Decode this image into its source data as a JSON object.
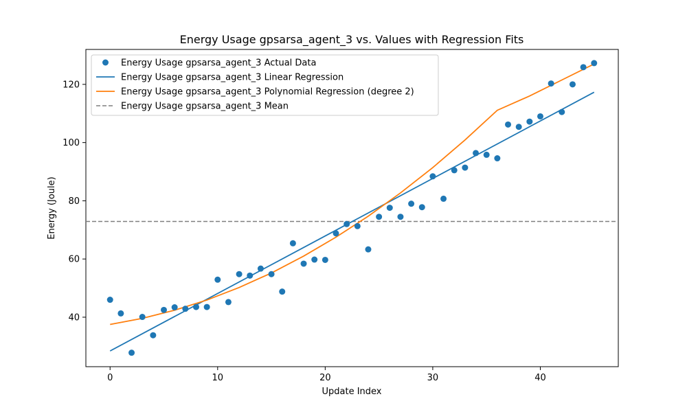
{
  "chart_data": {
    "type": "scatter",
    "title": "Energy Usage gpsarsa_agent_3 vs. Values with Regression Fits",
    "xlabel": "Update Index",
    "ylabel": "Energy (Joule)",
    "xlim": [
      -2.25,
      47.25
    ],
    "ylim": [
      23.0,
      132.0
    ],
    "xticks": [
      0,
      10,
      20,
      30,
      40
    ],
    "yticks": [
      40,
      60,
      80,
      100,
      120
    ],
    "grid": false,
    "legend_position": "top-left",
    "series": [
      {
        "name": "Energy Usage gpsarsa_agent_3 Actual Data",
        "kind": "scatter",
        "color": "#1f77b4",
        "x": [
          0,
          1,
          2,
          3,
          4,
          5,
          6,
          7,
          8,
          9,
          10,
          11,
          12,
          13,
          14,
          15,
          16,
          17,
          18,
          19,
          20,
          21,
          22,
          23,
          24,
          25,
          26,
          27,
          28,
          29,
          30,
          31,
          32,
          33,
          34,
          35,
          36,
          37,
          38,
          39,
          40,
          41,
          42,
          43,
          44,
          45
        ],
        "y": [
          46.0,
          41.3,
          27.8,
          40.1,
          33.8,
          42.5,
          43.4,
          42.9,
          43.5,
          43.5,
          52.9,
          45.2,
          54.8,
          54.3,
          56.7,
          54.8,
          48.8,
          65.4,
          58.4,
          59.8,
          59.7,
          68.8,
          72.0,
          71.3,
          63.3,
          74.5,
          77.6,
          74.5,
          79.0,
          77.8,
          88.4,
          80.7,
          90.5,
          91.4,
          96.4,
          95.8,
          94.6,
          106.2,
          105.4,
          107.2,
          109.0,
          120.3,
          110.5,
          120.0,
          125.9,
          127.3
        ]
      },
      {
        "name": "Energy Usage gpsarsa_agent_3 Linear Regression",
        "kind": "line",
        "color": "#1f77b4",
        "x": [
          0,
          45
        ],
        "y": [
          28.4,
          117.3
        ]
      },
      {
        "name": "Energy Usage gpsarsa_agent_3 Polynomial Regression (degree 2)",
        "kind": "line",
        "color": "#ff7f0e",
        "x": [
          0,
          3,
          6,
          9,
          12,
          15,
          18,
          21,
          24,
          27,
          30,
          33,
          36,
          39,
          42,
          45
        ],
        "y": [
          37.5,
          39.6,
          42.4,
          45.9,
          50.2,
          55.2,
          61.0,
          67.5,
          74.7,
          82.7,
          91.4,
          100.9,
          111.1,
          116.0,
          121.5,
          127.0
        ]
      },
      {
        "name": "Energy Usage gpsarsa_agent_3 Mean",
        "kind": "hline",
        "color": "#7f7f7f",
        "y": 72.9
      }
    ]
  }
}
